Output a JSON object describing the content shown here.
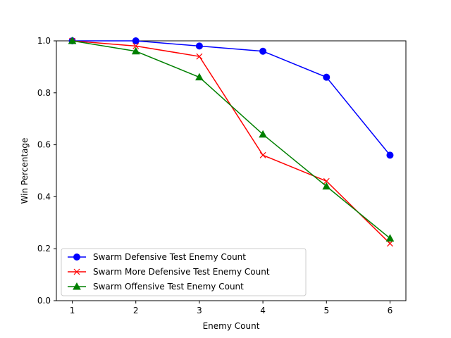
{
  "chart_data": {
    "type": "line",
    "title": "",
    "xlabel": "Enemy Count",
    "ylabel": "Win Percentage",
    "x": [
      1,
      2,
      3,
      4,
      5,
      6
    ],
    "xlim": [
      0.75,
      6.25
    ],
    "ylim": [
      0.0,
      1.0
    ],
    "xticks": [
      "1",
      "2",
      "3",
      "4",
      "5",
      "6"
    ],
    "yticks": [
      "0.0",
      "0.2",
      "0.4",
      "0.6",
      "0.8",
      "1.0"
    ],
    "grid": false,
    "legend_position": "lower-left",
    "series": [
      {
        "name": "Swarm Defensive Test Enemy Count",
        "color": "#0000ff",
        "marker": "circle",
        "values": [
          1.0,
          1.0,
          0.98,
          0.96,
          0.86,
          0.56
        ]
      },
      {
        "name": "Swarm More Defensive Test Enemy Count",
        "color": "#ff0000",
        "marker": "x",
        "values": [
          1.0,
          0.98,
          0.94,
          0.56,
          0.46,
          0.22
        ]
      },
      {
        "name": "Swarm Offensive Test Enemy Count",
        "color": "#008000",
        "marker": "triangle",
        "values": [
          1.0,
          0.96,
          0.86,
          0.64,
          0.44,
          0.24
        ]
      }
    ]
  }
}
